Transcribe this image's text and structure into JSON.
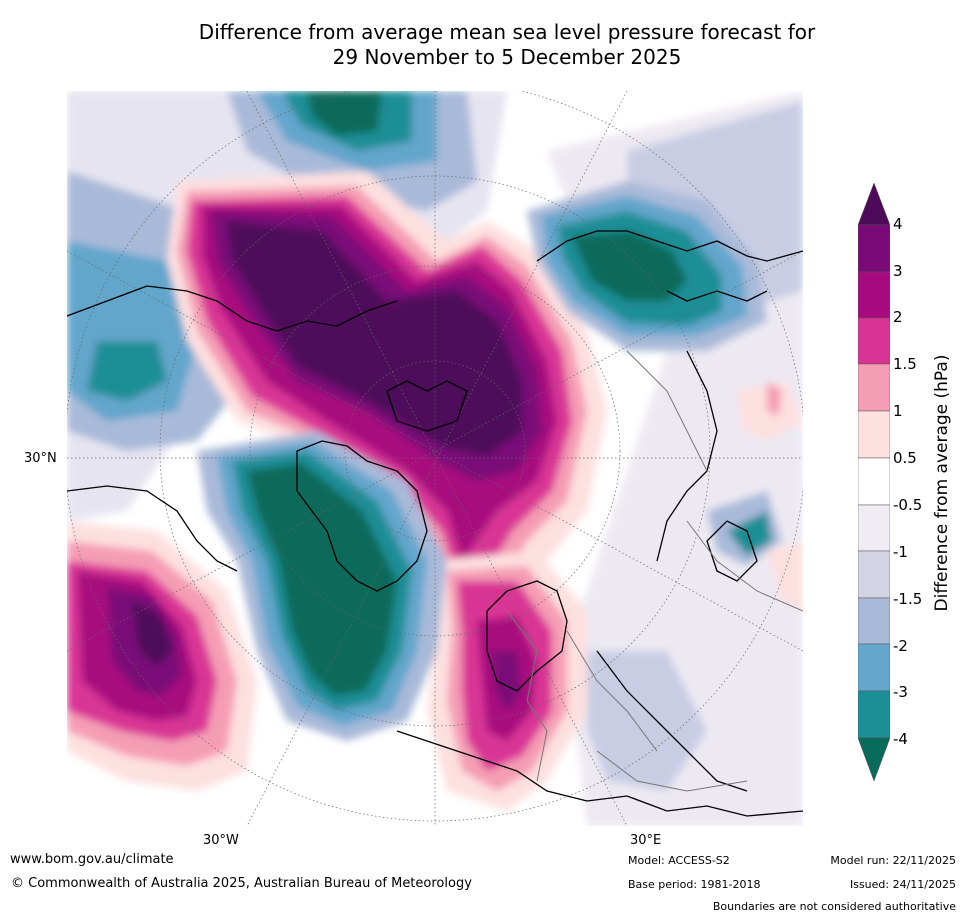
{
  "title": {
    "line1": "Difference from average mean sea level pressure forecast for",
    "line2": "29 November to 5 December 2025"
  },
  "map": {
    "lat_label": "30°N",
    "lon_labels": [
      "30°W",
      "30°E"
    ]
  },
  "colorbar": {
    "title": "Difference from average (hPa)",
    "ticks": [
      "4",
      "3",
      "2",
      "1.5",
      "1",
      "0.5",
      "-0.5",
      "-1",
      "-1.5",
      "-2",
      "-3",
      "-4"
    ],
    "colors": {
      "gt4": "#4d0a5a",
      "c3_4": "#7a0a78",
      "c2_3": "#a8097e",
      "c1_5_2": "#d93495",
      "c1_1_5": "#f59db5",
      "c0_5_1": "#fde0e0",
      "neutral": "#ffffff",
      "n0_5_1": "#f1ecf3",
      "n1_1_5": "#d3d3e6",
      "n1_5_2": "#a9bad9",
      "n2_3": "#64a6cc",
      "n3_4": "#1b8e96",
      "lt4": "#086a5a"
    }
  },
  "footer": {
    "url": "www.bom.gov.au/climate",
    "copyright": "© Commonwealth of Australia 2025, Australian Bureau of Meteorology",
    "model": "Model: ACCESS-S2",
    "base_period": "Base period: 1981-2018",
    "model_run": "Model run: 22/11/2025",
    "issued": "Issued: 24/11/2025",
    "disclaimer": "Boundaries are not considered authoritative"
  }
}
